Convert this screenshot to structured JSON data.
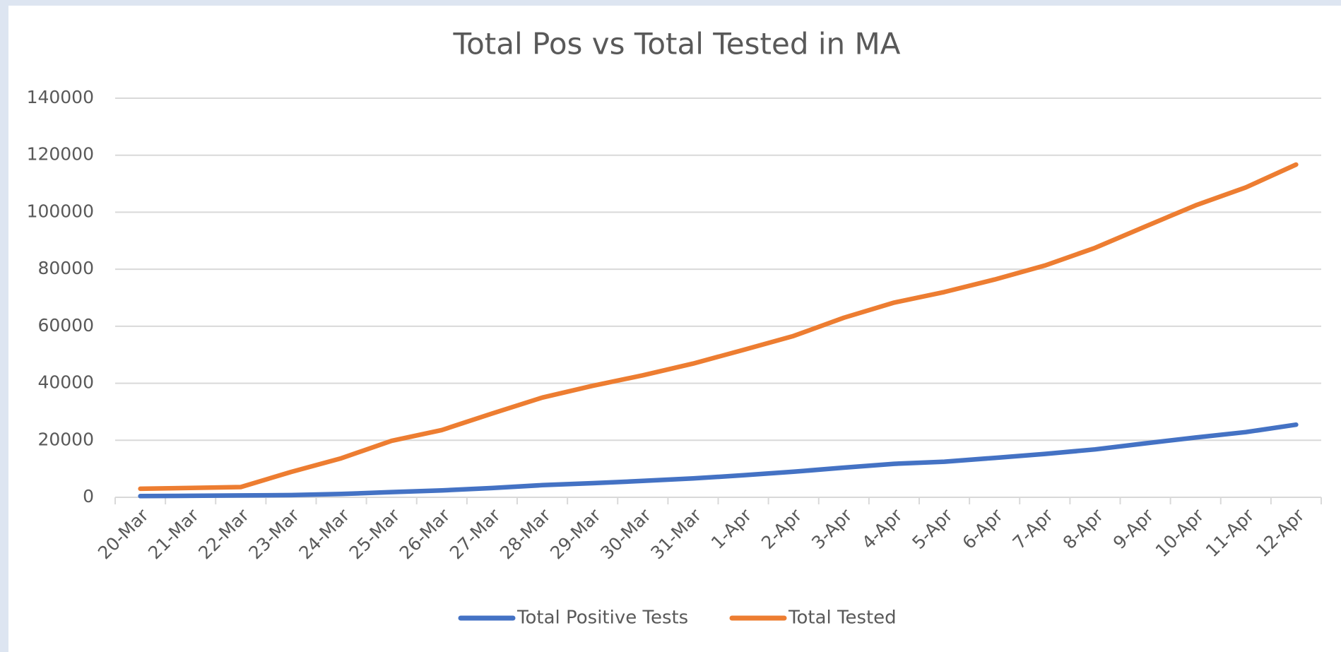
{
  "chart_data": {
    "type": "line",
    "title": "Total Pos vs Total Tested in MA",
    "categories": [
      "20-Mar",
      "21-Mar",
      "22-Mar",
      "23-Mar",
      "24-Mar",
      "25-Mar",
      "26-Mar",
      "27-Mar",
      "28-Mar",
      "29-Mar",
      "30-Mar",
      "31-Mar",
      "1-Apr",
      "2-Apr",
      "3-Apr",
      "4-Apr",
      "5-Apr",
      "6-Apr",
      "7-Apr",
      "8-Apr",
      "9-Apr",
      "10-Apr",
      "11-Apr",
      "12-Apr"
    ],
    "series": [
      {
        "name": "Total Positive Tests",
        "color": "#4472c4",
        "values": [
          413,
          525,
          646,
          777,
          1159,
          1838,
          2417,
          3240,
          4257,
          4955,
          5752,
          6620,
          7738,
          8966,
          10402,
          11736,
          12500,
          13837,
          15202,
          16790,
          18941,
          20974,
          22860,
          25475
        ]
      },
      {
        "name": "Total Tested",
        "color": "#ed7d31",
        "values": [
          3000,
          3300,
          3600,
          8900,
          13700,
          19800,
          23600,
          29400,
          35000,
          39100,
          42800,
          46900,
          51700,
          56600,
          63000,
          68300,
          72000,
          76400,
          81300,
          87500,
          95000,
          102400,
          108700,
          116700
        ]
      }
    ],
    "ylim": [
      0,
      140000
    ],
    "yticks": [
      0,
      20000,
      40000,
      60000,
      80000,
      100000,
      120000,
      140000
    ],
    "grid": true,
    "legend": "bottom"
  }
}
